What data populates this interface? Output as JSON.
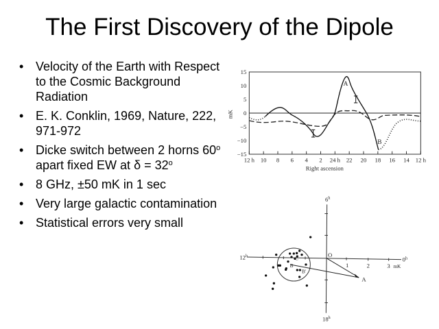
{
  "title": "The First Discovery of the Dipole",
  "bullets": [
    {
      "text": "Velocity of the Earth with Respect to the Cosmic Background Radiation"
    },
    {
      "text": "E. K. Conklin, 1969, Nature, 222, 971-972"
    },
    {
      "parts": [
        "Dicke switch between 2 horns 60",
        "o",
        " apart fixed EW at ",
        "δ",
        " = 32",
        "o"
      ]
    },
    {
      "text": "8 GHz, ±50 mK in 1 sec"
    },
    {
      "text": "Very large galactic contamination"
    },
    {
      "text": "Statistical errors very small"
    }
  ],
  "figure_top": {
    "ylabel": "mK",
    "xlabel": "Right ascension",
    "yticks": [
      "15",
      "10",
      "5",
      "0",
      "−5",
      "−10",
      "−15"
    ],
    "xticks": [
      "12 h",
      "10",
      "8",
      "6",
      "4",
      "2",
      "24 h",
      "22",
      "20",
      "18",
      "16",
      "14",
      "12 h"
    ],
    "labels": {
      "a": "A",
      "b": "B"
    }
  },
  "figure_bottom": {
    "axis_labels": {
      "top": "6",
      "left": "12",
      "right": "0",
      "bottom": "18",
      "hour": "h"
    },
    "xticks": [
      "1",
      "2",
      "3",
      "mK"
    ],
    "points": {
      "o": "O",
      "a": "A",
      "b": "B",
      "b_prime": "B'",
      "c": "C"
    }
  }
}
